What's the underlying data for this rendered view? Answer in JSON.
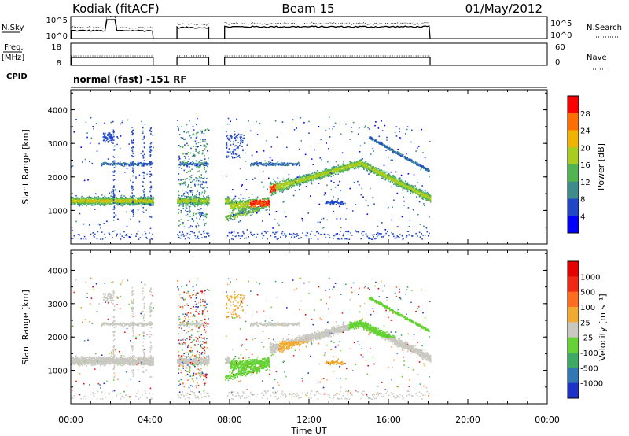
{
  "header": {
    "station": "Kodiak (fitACF)",
    "beam": "Beam 15",
    "date": "01/May/2012"
  },
  "panels": {
    "nsky": {
      "label": "N.Sky",
      "ticks": [
        "10^5",
        "10^0"
      ]
    },
    "nsearch": {
      "label": "N.Search",
      "ticks": [
        "10^5",
        "10^0"
      ]
    },
    "freq": {
      "label_line1": "Freq.",
      "label_line2": "[MHz]",
      "ticks": [
        "18",
        "8"
      ]
    },
    "nave": {
      "label": "Nave",
      "ticks": [
        "60",
        "0"
      ]
    },
    "cpid": {
      "label": "CPID",
      "value": "normal (fast) -151 RF"
    }
  },
  "chart_data": [
    {
      "type": "heatmap",
      "name": "power-panel",
      "ylabel": "Slant Range [km]",
      "ylim": [
        0,
        4600
      ],
      "yticks": [
        "1000",
        "2000",
        "3000",
        "4000"
      ],
      "xlim": [
        0,
        24
      ],
      "colorbar": {
        "label": "Power [dB]",
        "ticks": [
          "4",
          "8",
          "12",
          "16",
          "20",
          "24",
          "28"
        ],
        "colors": [
          "#0000ff",
          "#2047c8",
          "#3e8c8c",
          "#50b450",
          "#a8cd1e",
          "#f0b400",
          "#ff6e00",
          "#ff0000"
        ]
      }
    },
    {
      "type": "heatmap",
      "name": "velocity-panel",
      "ylabel": "Slant Range [km]",
      "ylim": [
        0,
        4600
      ],
      "yticks": [
        "1000",
        "2000",
        "3000",
        "4000"
      ],
      "xlim": [
        0,
        24
      ],
      "colorbar": {
        "label": "Velocity [m s⁻¹]",
        "ticks": [
          "1000",
          "500",
          "100",
          "25",
          "-25",
          "-100",
          "-500",
          "-1000"
        ],
        "colors": [
          "#1e32c8",
          "#3278b4",
          "#3caa64",
          "#64d232",
          "#c8c8c0",
          "#f0aa32",
          "#ff6e1e",
          "#f02814",
          "#e60000"
        ]
      }
    }
  ],
  "xaxis": {
    "label": "Time UT",
    "ticks": [
      "00:00",
      "04:00",
      "08:00",
      "12:00",
      "16:00",
      "20:00",
      "00:00"
    ]
  }
}
